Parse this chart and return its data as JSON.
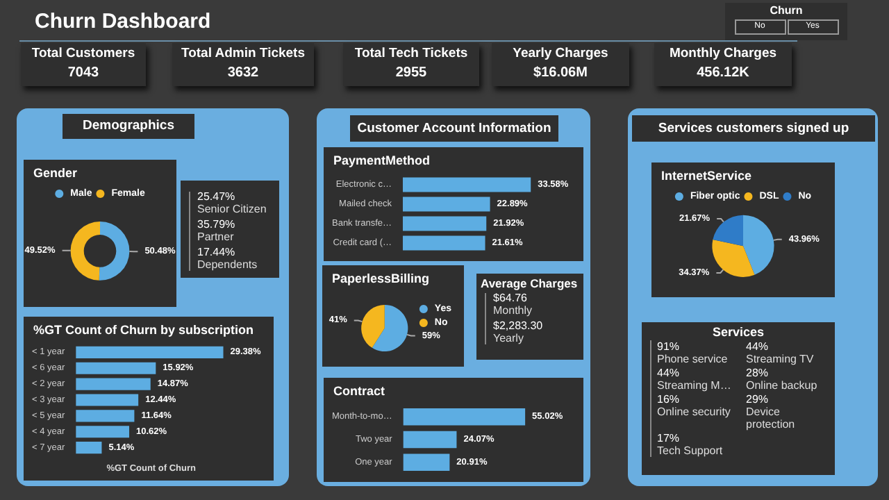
{
  "chart_data": [
    {
      "type": "other",
      "title": "Churn Dashboard"
    },
    {
      "type": "other",
      "title": "Churn",
      "annotations": [
        "No",
        "Yes"
      ]
    },
    {
      "type": "other",
      "title": "Total Customers",
      "annotations": [
        "7043"
      ]
    },
    {
      "type": "other",
      "title": "Total Admin Tickets",
      "annotations": [
        "3632"
      ]
    },
    {
      "type": "other",
      "title": "Total Tech Tickets",
      "annotations": [
        "2955"
      ]
    },
    {
      "type": "other",
      "title": "Yearly Charges",
      "annotations": [
        "$16.06M"
      ]
    },
    {
      "type": "other",
      "title": "Monthly Charges",
      "annotations": [
        "456.12K"
      ]
    },
    {
      "type": "other",
      "title": "Demographics"
    },
    {
      "type": "other",
      "title": "Customer Account Information"
    },
    {
      "type": "other",
      "title": "Services customers signed up"
    },
    {
      "type": "donut",
      "title": "Gender",
      "categories": [
        "Male",
        "Female"
      ],
      "values": [
        50.48,
        49.52
      ],
      "colors": [
        "#5dade2",
        "#f5b71f"
      ],
      "value_labels": [
        "50.48%",
        "49.52%"
      ],
      "legend": "top"
    },
    {
      "type": "bar",
      "title": "PaymentMethod",
      "orientation": "horizontal",
      "categories": [
        "Electronic c…",
        "Mailed check",
        "Bank transfe…",
        "Credit card (…"
      ],
      "values": [
        33.58,
        22.89,
        21.92,
        21.61
      ],
      "color": "#5dade2",
      "value_labels": [
        "33.58%",
        "22.89%",
        "21.92%",
        "21.61%"
      ],
      "tick_labels": "y"
    },
    {
      "type": "other",
      "annotations": [
        "25.47%",
        "Senior Citizen",
        "35.79%",
        "Partner",
        "17.44%",
        "Dependents"
      ]
    },
    {
      "type": "pie",
      "title": "PaperlessBilling",
      "categories": [
        "Yes",
        "No"
      ],
      "values": [
        59,
        41
      ],
      "colors": [
        "#5dade2",
        "#f5b71f"
      ],
      "value_labels": [
        "59%",
        "41%"
      ],
      "legend": "right"
    },
    {
      "type": "other",
      "title": "Average Charges",
      "annotations": [
        "$64.76",
        "Monthly",
        "$2,283.30",
        "Yearly"
      ]
    },
    {
      "type": "pie",
      "title": "InternetService",
      "categories": [
        "Fiber optic",
        "DSL",
        "No"
      ],
      "values": [
        43.96,
        34.37,
        21.67
      ],
      "colors": [
        "#5dade2",
        "#f5b71f",
        "#2f7cc8"
      ],
      "value_labels": [
        "43.96%",
        "34.37%",
        "21.67%"
      ],
      "legend": "top"
    },
    {
      "type": "other",
      "title": "Services",
      "annotations": [
        "91%",
        "Phone service",
        "44%",
        "Streaming TV",
        "44%",
        "Streaming M…",
        "28%",
        "Online backup",
        "16%",
        "Online security",
        "29%",
        "Device protection",
        "17%",
        "Tech Support"
      ]
    },
    {
      "type": "bar",
      "title": "%GT Count of Churn by subscription",
      "orientation": "horizontal",
      "categories": [
        "< 1 year",
        "< 6 year",
        "< 2 year",
        "< 3 year",
        "< 5 year",
        "< 4 year",
        "< 7 year"
      ],
      "values": [
        29.38,
        15.92,
        14.87,
        12.44,
        11.64,
        10.62,
        5.14
      ],
      "color": "#5dade2",
      "value_labels": [
        "29.38%",
        "15.92%",
        "14.87%",
        "12.44%",
        "11.64%",
        "10.62%",
        "5.14%"
      ],
      "xlabel": "%GT Count of Churn",
      "tick_labels": "y"
    },
    {
      "type": "bar",
      "title": "Contract",
      "orientation": "horizontal",
      "categories": [
        "Month-to-mo…",
        "Two year",
        "One year"
      ],
      "values": [
        55.02,
        24.07,
        20.91
      ],
      "color": "#5dade2",
      "value_labels": [
        "55.02%",
        "24.07%",
        "20.91%"
      ],
      "tick_labels": "y"
    }
  ]
}
